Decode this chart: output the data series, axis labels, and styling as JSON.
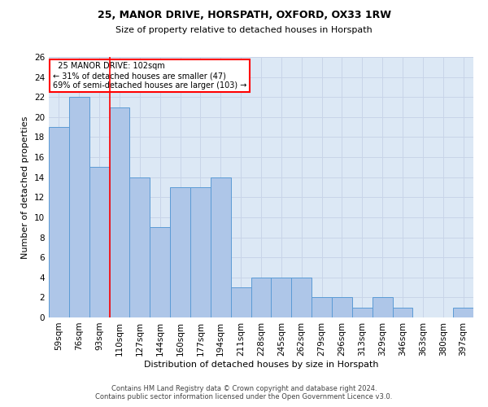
{
  "title": "25, MANOR DRIVE, HORSPATH, OXFORD, OX33 1RW",
  "subtitle": "Size of property relative to detached houses in Horspath",
  "xlabel": "Distribution of detached houses by size in Horspath",
  "ylabel": "Number of detached properties",
  "categories": [
    "59sqm",
    "76sqm",
    "93sqm",
    "110sqm",
    "127sqm",
    "144sqm",
    "160sqm",
    "177sqm",
    "194sqm",
    "211sqm",
    "228sqm",
    "245sqm",
    "262sqm",
    "279sqm",
    "296sqm",
    "313sqm",
    "329sqm",
    "346sqm",
    "363sqm",
    "380sqm",
    "397sqm"
  ],
  "values": [
    19,
    22,
    15,
    21,
    14,
    9,
    13,
    13,
    14,
    3,
    4,
    4,
    4,
    2,
    2,
    1,
    2,
    1,
    0,
    0,
    1
  ],
  "bar_color": "#aec6e8",
  "bar_edge_color": "#5b9bd5",
  "bar_width": 1.0,
  "red_line_x": 2.5,
  "annotation_text": "  25 MANOR DRIVE: 102sqm  \n← 31% of detached houses are smaller (47)\n69% of semi-detached houses are larger (103) →",
  "annotation_box_color": "white",
  "annotation_box_edge_color": "red",
  "ylim": [
    0,
    26
  ],
  "yticks": [
    0,
    2,
    4,
    6,
    8,
    10,
    12,
    14,
    16,
    18,
    20,
    22,
    24,
    26
  ],
  "grid_color": "#c8d4e8",
  "background_color": "#dce8f5",
  "footer_line1": "Contains HM Land Registry data © Crown copyright and database right 2024.",
  "footer_line2": "Contains public sector information licensed under the Open Government Licence v3.0.",
  "title_fontsize": 9,
  "subtitle_fontsize": 8,
  "xlabel_fontsize": 8,
  "ylabel_fontsize": 8,
  "tick_fontsize": 7.5,
  "annotation_fontsize": 7,
  "footer_fontsize": 6
}
